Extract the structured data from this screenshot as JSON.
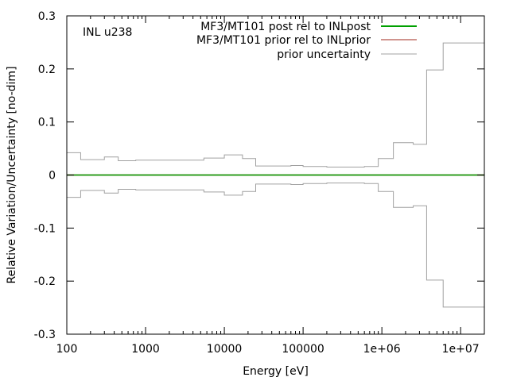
{
  "chart_data": {
    "type": "line",
    "annotation": "INL u238",
    "xlabel": "Energy [eV]",
    "ylabel": "Relative Variation/Uncertainty [no-dim]",
    "x_scale": "log",
    "xlim": [
      100,
      20000000
    ],
    "ylim": [
      -0.3,
      0.3
    ],
    "x_ticks": [
      {
        "value": 100,
        "label": "100"
      },
      {
        "value": 1000,
        "label": "1000"
      },
      {
        "value": 10000,
        "label": "10000"
      },
      {
        "value": 100000,
        "label": "100000"
      },
      {
        "value": 1000000,
        "label": "1e+06"
      },
      {
        "value": 10000000,
        "label": "1e+07"
      }
    ],
    "y_ticks": [
      {
        "value": 0.3,
        "label": "0.3"
      },
      {
        "value": 0.2,
        "label": "0.2"
      },
      {
        "value": 0.1,
        "label": "0.1"
      },
      {
        "value": 0,
        "label": "0"
      },
      {
        "value": -0.1,
        "label": "-0.1"
      },
      {
        "value": -0.2,
        "label": "-0.2"
      },
      {
        "value": -0.3,
        "label": "-0.3"
      }
    ],
    "grid": false,
    "legend_position": "top-right",
    "series": [
      {
        "name": "MF3/MT101 post rel to INLpost",
        "color": "#00a000",
        "style": "step",
        "x": [
          100,
          20000000
        ],
        "y": [
          0,
          0
        ]
      },
      {
        "name": "MF3/MT101 prior rel to INLprior",
        "color": "#a0281e",
        "style": "step",
        "x": [
          100,
          20000000
        ],
        "y": [
          0,
          0
        ]
      },
      {
        "name": "prior uncertainty",
        "color": "#a0a0a0",
        "style": "step",
        "mirror": true,
        "edges": [
          100,
          150,
          300,
          450,
          750,
          5500,
          10000,
          17000,
          25000,
          70000,
          100000,
          200000,
          600000,
          900000,
          1400000,
          2500000,
          3700000,
          6000000,
          20000000
        ],
        "values": [
          0.042,
          0.029,
          0.034,
          0.027,
          0.028,
          0.032,
          0.038,
          0.031,
          0.017,
          0.018,
          0.016,
          0.015,
          0.016,
          0.031,
          0.061,
          0.058,
          0.198,
          0.249
        ]
      }
    ]
  }
}
